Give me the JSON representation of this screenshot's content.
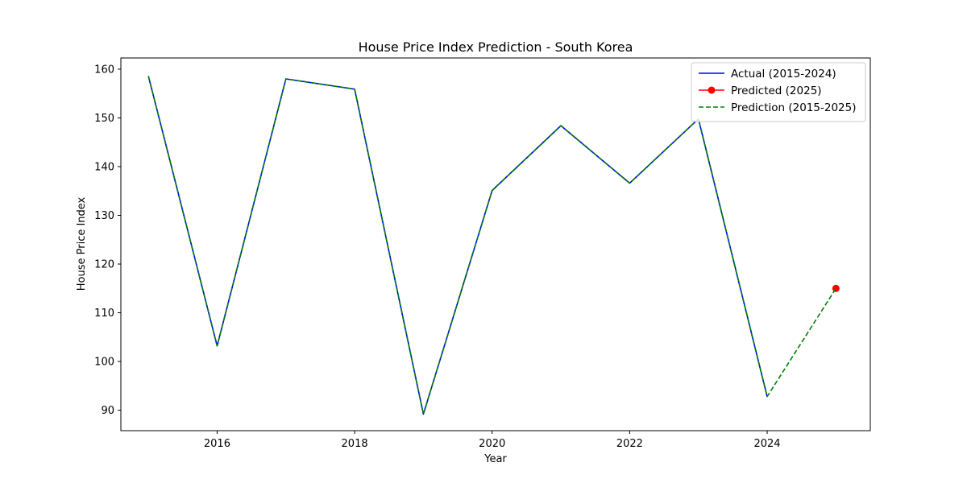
{
  "chart_data": {
    "type": "line",
    "title": "House Price Index Prediction - South Korea",
    "xlabel": "Year",
    "ylabel": "House Price Index",
    "xlim": [
      2014.6,
      2025.5
    ],
    "ylim": [
      85.8,
      162.3
    ],
    "xticks": [
      2016,
      2018,
      2020,
      2022,
      2024
    ],
    "yticks": [
      90,
      100,
      110,
      120,
      130,
      140,
      150,
      160
    ],
    "grid": false,
    "legend_position": "top-right",
    "series": [
      {
        "name": "Actual (2015-2024)",
        "color": "#0000ff",
        "style": "solid",
        "marker": "none",
        "x": [
          2015,
          2016,
          2017,
          2018,
          2019,
          2020,
          2021,
          2022,
          2023,
          2024
        ],
        "y": [
          158.6,
          103.2,
          158.0,
          155.9,
          89.2,
          135.1,
          148.4,
          136.6,
          149.8,
          92.8
        ]
      },
      {
        "name": "Predicted (2025)",
        "color": "#ff0000",
        "style": "solid",
        "marker": "circle",
        "x": [
          2025
        ],
        "y": [
          115.0
        ]
      },
      {
        "name": "Prediction (2015-2025)",
        "color": "#008000",
        "style": "dashed",
        "marker": "none",
        "x": [
          2015,
          2016,
          2017,
          2018,
          2019,
          2020,
          2021,
          2022,
          2023,
          2024,
          2025
        ],
        "y": [
          158.6,
          103.2,
          158.0,
          155.9,
          89.2,
          135.1,
          148.4,
          136.6,
          149.8,
          92.8,
          115.0
        ]
      }
    ]
  }
}
